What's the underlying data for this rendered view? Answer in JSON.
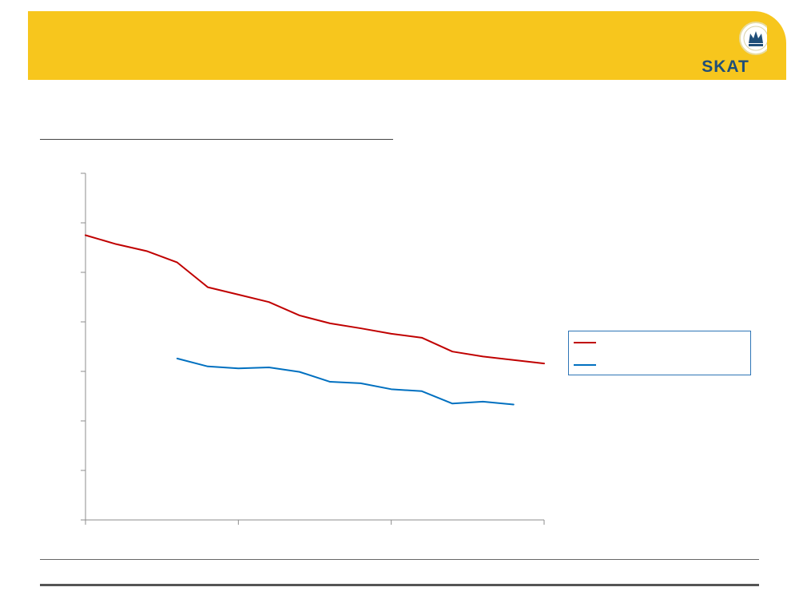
{
  "header": {
    "banner_color": "#f7c61d",
    "logo": {
      "icon": "crown-seal-icon",
      "text": "SKAT",
      "text_color": "#1f4e79"
    }
  },
  "chart_data": {
    "type": "line",
    "title": "",
    "xlabel": "",
    "ylabel": "",
    "x": [
      0,
      1,
      2,
      3,
      4,
      5,
      6,
      7,
      8,
      9,
      10,
      11,
      12,
      13,
      14,
      15
    ],
    "xlim": [
      0,
      15
    ],
    "ylim": [
      0,
      7
    ],
    "y_ticks": [
      0,
      1,
      2,
      3,
      4,
      5,
      6,
      7
    ],
    "x_ticks": [
      0,
      5,
      10,
      15
    ],
    "grid": false,
    "legend": "right",
    "series": [
      {
        "name": "",
        "color": "#c00000",
        "values": [
          5.75,
          5.57,
          5.43,
          5.2,
          4.7,
          4.55,
          4.4,
          4.13,
          3.97,
          3.87,
          3.76,
          3.68,
          3.4,
          3.3,
          3.23,
          3.16
        ]
      },
      {
        "name": "",
        "color": "#0070c0",
        "values": [
          null,
          null,
          null,
          3.26,
          3.1,
          3.06,
          3.08,
          2.99,
          2.79,
          2.76,
          2.64,
          2.6,
          2.35,
          2.39,
          2.33,
          null
        ]
      }
    ]
  }
}
